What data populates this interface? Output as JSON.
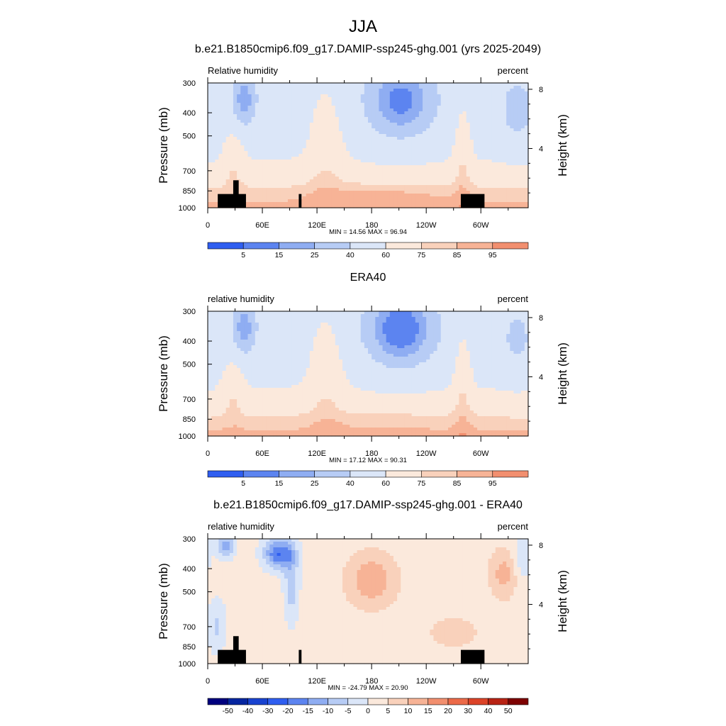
{
  "page_title": "JJA",
  "chart_data": [
    {
      "type": "heatmap",
      "title": "b.e21.B1850cmip6.f09_g17.DAMIP-ssp245-ghg.001 (yrs 2025-2049)",
      "left_label": "Relative humidity",
      "right_label": "percent",
      "ylabel": "Pressure (mb)",
      "ylabel_right": "Height (km)",
      "x_ticks": [
        "0",
        "60E",
        "120E",
        "180",
        "120W",
        "60W"
      ],
      "x_tick_values": [
        0,
        60,
        120,
        180,
        240,
        300
      ],
      "xlim": [
        0,
        352
      ],
      "y_ticks": [
        "300",
        "400",
        "500",
        "700",
        "850",
        "1000"
      ],
      "y_tick_values": [
        300,
        400,
        500,
        700,
        850,
        1000
      ],
      "ylim": [
        1000,
        300
      ],
      "y_right_ticks": [
        "8",
        "4"
      ],
      "y_right_values": [
        8,
        4
      ],
      "stats": "MIN =  14.56   MAX =  96.94",
      "min": 14.56,
      "max": 96.94,
      "colorbar_labels": [
        "5",
        "15",
        "25",
        "40",
        "60",
        "75",
        "85",
        "95"
      ],
      "colorbar_colors": [
        "#00007e",
        "#0626a0",
        "#1943d0",
        "#2f5ef0",
        "#5c84f0",
        "#8fadf2",
        "#b7ccf5",
        "#dbe6f8",
        "#fbe9dc",
        "#f9d1bb",
        "#f7b396",
        "#f28f6f",
        "#ec6a48",
        "#dc4328",
        "#b82314",
        "#7e0202"
      ],
      "masked_terrain": true
    },
    {
      "type": "heatmap",
      "title": "ERA40",
      "left_label": "relative humidity",
      "right_label": "percent",
      "ylabel": "Pressure (mb)",
      "ylabel_right": "Height (km)",
      "x_ticks": [
        "0",
        "60E",
        "120E",
        "180",
        "120W",
        "60W"
      ],
      "x_tick_values": [
        0,
        60,
        120,
        180,
        240,
        300
      ],
      "xlim": [
        0,
        352
      ],
      "y_ticks": [
        "300",
        "400",
        "500",
        "700",
        "850",
        "1000"
      ],
      "y_tick_values": [
        300,
        400,
        500,
        700,
        850,
        1000
      ],
      "ylim": [
        1000,
        300
      ],
      "y_right_ticks": [
        "8",
        "4"
      ],
      "y_right_values": [
        8,
        4
      ],
      "stats": "MIN =  17.12   MAX =  90.31",
      "min": 17.12,
      "max": 90.31,
      "colorbar_labels": [
        "5",
        "15",
        "25",
        "40",
        "60",
        "75",
        "85",
        "95"
      ],
      "colorbar_colors": [
        "#00007e",
        "#0626a0",
        "#1943d0",
        "#2f5ef0",
        "#5c84f0",
        "#8fadf2",
        "#b7ccf5",
        "#dbe6f8",
        "#fbe9dc",
        "#f9d1bb",
        "#f7b396",
        "#f28f6f",
        "#ec6a48",
        "#dc4328",
        "#b82314",
        "#7e0202"
      ],
      "masked_terrain": false
    },
    {
      "type": "heatmap",
      "title": "b.e21.B1850cmip6.f09_g17.DAMIP-ssp245-ghg.001 - ERA40",
      "left_label": "relative humidity",
      "right_label": "percent",
      "ylabel": "Pressure (mb)",
      "ylabel_right": "Height (km)",
      "x_ticks": [
        "0",
        "60E",
        "120E",
        "180",
        "120W",
        "60W"
      ],
      "x_tick_values": [
        0,
        60,
        120,
        180,
        240,
        300
      ],
      "xlim": [
        0,
        352
      ],
      "y_ticks": [
        "300",
        "400",
        "500",
        "700",
        "850",
        "1000"
      ],
      "y_tick_values": [
        300,
        400,
        500,
        700,
        850,
        1000
      ],
      "ylim": [
        1000,
        300
      ],
      "y_right_ticks": [
        "8",
        "4"
      ],
      "y_right_values": [
        8,
        4
      ],
      "stats": "MIN = -24.79   MAX =  20.90",
      "min": -24.79,
      "max": 20.9,
      "colorbar_labels": [
        "-50",
        "-40",
        "-30",
        "-20",
        "-15",
        "-10",
        "-5",
        "0",
        "5",
        "10",
        "15",
        "20",
        "30",
        "40",
        "50"
      ],
      "colorbar_colors": [
        "#00007e",
        "#0626a0",
        "#1943d0",
        "#2f5ef0",
        "#5c84f0",
        "#8fadf2",
        "#b7ccf5",
        "#dbe6f8",
        "#fbe9dc",
        "#f9d1bb",
        "#f7b396",
        "#f28f6f",
        "#ec6a48",
        "#dc4328",
        "#b82314",
        "#7e0202"
      ],
      "masked_terrain": true
    }
  ]
}
